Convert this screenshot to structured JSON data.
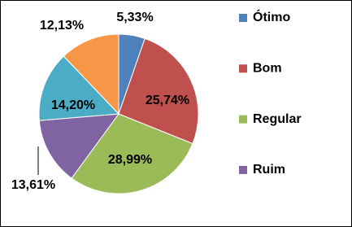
{
  "chart_data": {
    "type": "pie",
    "categories": [
      "Ótimo",
      "Bom",
      "Regular",
      "Ruim",
      null,
      null
    ],
    "values": [
      5.33,
      25.74,
      28.99,
      13.61,
      14.2,
      12.13
    ],
    "value_labels": [
      "5,33%",
      "25,74%",
      "28,99%",
      "13,61%",
      "14,20%",
      "12,13%"
    ],
    "colors": [
      "#4f81bd",
      "#c0504d",
      "#9bbb59",
      "#8064a2",
      "#4bacc6",
      "#f79646"
    ]
  }
}
